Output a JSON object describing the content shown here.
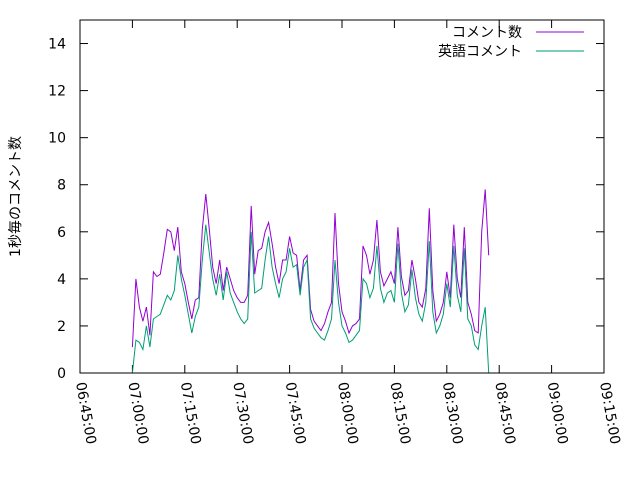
{
  "chart_data": {
    "type": "line",
    "ylabel": "1秒毎のコメント数",
    "xlabel": "",
    "title": "",
    "ylim": [
      0,
      15
    ],
    "yticks": [
      0,
      2,
      4,
      6,
      8,
      10,
      12,
      14
    ],
    "xlim": [
      "06:45:00",
      "09:15:00"
    ],
    "xticks": [
      "06:45:00",
      "07:00:00",
      "07:15:00",
      "07:30:00",
      "07:45:00",
      "08:00:00",
      "08:15:00",
      "08:30:00",
      "08:45:00",
      "09:00:00",
      "09:15:00"
    ],
    "grid": false,
    "legend": "top-right",
    "series": [
      {
        "name": "コメント数",
        "color": "#9400d3",
        "points": [
          [
            "07:00:00",
            1.1
          ],
          [
            "07:01:00",
            4.0
          ],
          [
            "07:02:00",
            2.8
          ],
          [
            "07:03:00",
            2.2
          ],
          [
            "07:04:00",
            2.8
          ],
          [
            "07:05:00",
            1.6
          ],
          [
            "07:06:00",
            4.3
          ],
          [
            "07:07:00",
            4.1
          ],
          [
            "07:08:00",
            4.2
          ],
          [
            "07:09:00",
            5.1
          ],
          [
            "07:10:00",
            6.1
          ],
          [
            "07:11:00",
            6.0
          ],
          [
            "07:12:00",
            5.2
          ],
          [
            "07:13:00",
            6.2
          ],
          [
            "07:14:00",
            4.3
          ],
          [
            "07:15:00",
            3.8
          ],
          [
            "07:16:00",
            3.0
          ],
          [
            "07:17:00",
            2.3
          ],
          [
            "07:18:00",
            3.1
          ],
          [
            "07:19:00",
            3.2
          ],
          [
            "07:20:00",
            6.1
          ],
          [
            "07:21:00",
            7.6
          ],
          [
            "07:22:00",
            6.1
          ],
          [
            "07:23:00",
            4.5
          ],
          [
            "07:24:00",
            3.8
          ],
          [
            "07:25:00",
            4.8
          ],
          [
            "07:26:00",
            3.5
          ],
          [
            "07:27:00",
            4.5
          ],
          [
            "07:28:00",
            4.0
          ],
          [
            "07:29:00",
            3.5
          ],
          [
            "07:30:00",
            3.2
          ],
          [
            "07:31:00",
            3.0
          ],
          [
            "07:32:00",
            3.0
          ],
          [
            "07:33:00",
            3.3
          ],
          [
            "07:34:00",
            7.1
          ],
          [
            "07:35:00",
            4.2
          ],
          [
            "07:36:00",
            5.2
          ],
          [
            "07:37:00",
            5.3
          ],
          [
            "07:38:00",
            6.0
          ],
          [
            "07:39:00",
            6.4
          ],
          [
            "07:40:00",
            5.5
          ],
          [
            "07:41:00",
            4.5
          ],
          [
            "07:42:00",
            3.8
          ],
          [
            "07:43:00",
            4.8
          ],
          [
            "07:44:00",
            4.8
          ],
          [
            "07:45:00",
            5.8
          ],
          [
            "07:46:00",
            5.1
          ],
          [
            "07:47:00",
            5.0
          ],
          [
            "07:48:00",
            3.5
          ],
          [
            "07:49:00",
            4.8
          ],
          [
            "07:50:00",
            5.0
          ],
          [
            "07:51:00",
            2.7
          ],
          [
            "07:52:00",
            2.2
          ],
          [
            "07:53:00",
            2.0
          ],
          [
            "07:54:00",
            1.8
          ],
          [
            "07:55:00",
            2.1
          ],
          [
            "07:56:00",
            2.6
          ],
          [
            "07:57:00",
            3.0
          ],
          [
            "07:58:00",
            6.8
          ],
          [
            "07:59:00",
            3.8
          ],
          [
            "08:00:00",
            2.6
          ],
          [
            "08:01:00",
            2.2
          ],
          [
            "08:02:00",
            1.7
          ],
          [
            "08:03:00",
            2.0
          ],
          [
            "08:04:00",
            2.1
          ],
          [
            "08:05:00",
            2.3
          ],
          [
            "08:06:00",
            5.4
          ],
          [
            "08:07:00",
            5.0
          ],
          [
            "08:08:00",
            4.2
          ],
          [
            "08:09:00",
            4.8
          ],
          [
            "08:10:00",
            6.5
          ],
          [
            "08:11:00",
            4.3
          ],
          [
            "08:12:00",
            3.7
          ],
          [
            "08:13:00",
            4.0
          ],
          [
            "08:14:00",
            4.3
          ],
          [
            "08:15:00",
            3.8
          ],
          [
            "08:16:00",
            6.2
          ],
          [
            "08:17:00",
            4.1
          ],
          [
            "08:18:00",
            3.3
          ],
          [
            "08:19:00",
            3.5
          ],
          [
            "08:20:00",
            4.8
          ],
          [
            "08:21:00",
            4.0
          ],
          [
            "08:22:00",
            3.0
          ],
          [
            "08:23:00",
            2.8
          ],
          [
            "08:24:00",
            3.6
          ],
          [
            "08:25:00",
            7.0
          ],
          [
            "08:26:00",
            3.5
          ],
          [
            "08:27:00",
            2.2
          ],
          [
            "08:28:00",
            2.5
          ],
          [
            "08:29:00",
            3.0
          ],
          [
            "08:30:00",
            4.3
          ],
          [
            "08:31:00",
            3.2
          ],
          [
            "08:32:00",
            6.3
          ],
          [
            "08:33:00",
            4.0
          ],
          [
            "08:34:00",
            3.2
          ],
          [
            "08:35:00",
            6.2
          ],
          [
            "08:36:00",
            3.0
          ],
          [
            "08:37:00",
            2.5
          ],
          [
            "08:38:00",
            1.8
          ],
          [
            "08:39:00",
            1.7
          ],
          [
            "08:40:00",
            6.0
          ],
          [
            "08:41:00",
            7.8
          ],
          [
            "08:42:00",
            5.0
          ]
        ]
      },
      {
        "name": "英語コメント",
        "color": "#009e73",
        "points": [
          [
            "07:00:00",
            0.0
          ],
          [
            "07:01:00",
            1.4
          ],
          [
            "07:02:00",
            1.3
          ],
          [
            "07:03:00",
            1.0
          ],
          [
            "07:04:00",
            2.0
          ],
          [
            "07:05:00",
            1.1
          ],
          [
            "07:06:00",
            2.3
          ],
          [
            "07:07:00",
            2.4
          ],
          [
            "07:08:00",
            2.5
          ],
          [
            "07:09:00",
            2.9
          ],
          [
            "07:10:00",
            3.3
          ],
          [
            "07:11:00",
            3.1
          ],
          [
            "07:12:00",
            3.5
          ],
          [
            "07:13:00",
            5.0
          ],
          [
            "07:14:00",
            4.0
          ],
          [
            "07:15:00",
            3.3
          ],
          [
            "07:16:00",
            2.5
          ],
          [
            "07:17:00",
            1.7
          ],
          [
            "07:18:00",
            2.4
          ],
          [
            "07:19:00",
            2.8
          ],
          [
            "07:20:00",
            4.8
          ],
          [
            "07:21:00",
            6.3
          ],
          [
            "07:22:00",
            5.1
          ],
          [
            "07:23:00",
            4.0
          ],
          [
            "07:24:00",
            3.3
          ],
          [
            "07:25:00",
            4.2
          ],
          [
            "07:26:00",
            3.1
          ],
          [
            "07:27:00",
            4.3
          ],
          [
            "07:28:00",
            3.4
          ],
          [
            "07:29:00",
            3.0
          ],
          [
            "07:30:00",
            2.6
          ],
          [
            "07:31:00",
            2.3
          ],
          [
            "07:32:00",
            2.1
          ],
          [
            "07:33:00",
            2.3
          ],
          [
            "07:34:00",
            6.0
          ],
          [
            "07:35:00",
            3.4
          ],
          [
            "07:36:00",
            3.5
          ],
          [
            "07:37:00",
            3.6
          ],
          [
            "07:38:00",
            4.8
          ],
          [
            "07:39:00",
            5.8
          ],
          [
            "07:40:00",
            4.5
          ],
          [
            "07:41:00",
            3.8
          ],
          [
            "07:42:00",
            3.2
          ],
          [
            "07:43:00",
            4.0
          ],
          [
            "07:44:00",
            4.3
          ],
          [
            "07:45:00",
            5.3
          ],
          [
            "07:46:00",
            4.5
          ],
          [
            "07:47:00",
            4.6
          ],
          [
            "07:48:00",
            3.3
          ],
          [
            "07:49:00",
            4.5
          ],
          [
            "07:50:00",
            4.8
          ],
          [
            "07:51:00",
            2.3
          ],
          [
            "07:52:00",
            1.9
          ],
          [
            "07:53:00",
            1.7
          ],
          [
            "07:54:00",
            1.5
          ],
          [
            "07:55:00",
            1.4
          ],
          [
            "07:56:00",
            1.8
          ],
          [
            "07:57:00",
            2.3
          ],
          [
            "07:58:00",
            4.8
          ],
          [
            "07:59:00",
            3.0
          ],
          [
            "08:00:00",
            2.0
          ],
          [
            "08:01:00",
            1.7
          ],
          [
            "08:02:00",
            1.3
          ],
          [
            "08:03:00",
            1.4
          ],
          [
            "08:04:00",
            1.6
          ],
          [
            "08:05:00",
            1.8
          ],
          [
            "08:06:00",
            4.0
          ],
          [
            "08:07:00",
            3.8
          ],
          [
            "08:08:00",
            3.2
          ],
          [
            "08:09:00",
            3.6
          ],
          [
            "08:10:00",
            5.4
          ],
          [
            "08:11:00",
            3.6
          ],
          [
            "08:12:00",
            3.0
          ],
          [
            "08:13:00",
            3.4
          ],
          [
            "08:14:00",
            3.5
          ],
          [
            "08:15:00",
            3.0
          ],
          [
            "08:16:00",
            5.5
          ],
          [
            "08:17:00",
            3.4
          ],
          [
            "08:18:00",
            2.6
          ],
          [
            "08:19:00",
            2.9
          ],
          [
            "08:20:00",
            4.4
          ],
          [
            "08:21:00",
            3.2
          ],
          [
            "08:22:00",
            2.5
          ],
          [
            "08:23:00",
            2.2
          ],
          [
            "08:24:00",
            3.0
          ],
          [
            "08:25:00",
            5.6
          ],
          [
            "08:26:00",
            2.6
          ],
          [
            "08:27:00",
            1.7
          ],
          [
            "08:28:00",
            2.0
          ],
          [
            "08:29:00",
            2.5
          ],
          [
            "08:30:00",
            3.8
          ],
          [
            "08:31:00",
            2.8
          ],
          [
            "08:32:00",
            5.4
          ],
          [
            "08:33:00",
            3.3
          ],
          [
            "08:34:00",
            2.6
          ],
          [
            "08:35:00",
            5.3
          ],
          [
            "08:36:00",
            2.3
          ],
          [
            "08:37:00",
            2.0
          ],
          [
            "08:38:00",
            1.2
          ],
          [
            "08:39:00",
            1.0
          ],
          [
            "08:40:00",
            2.0
          ],
          [
            "08:41:00",
            2.8
          ],
          [
            "08:42:00",
            0.0
          ]
        ]
      }
    ]
  }
}
